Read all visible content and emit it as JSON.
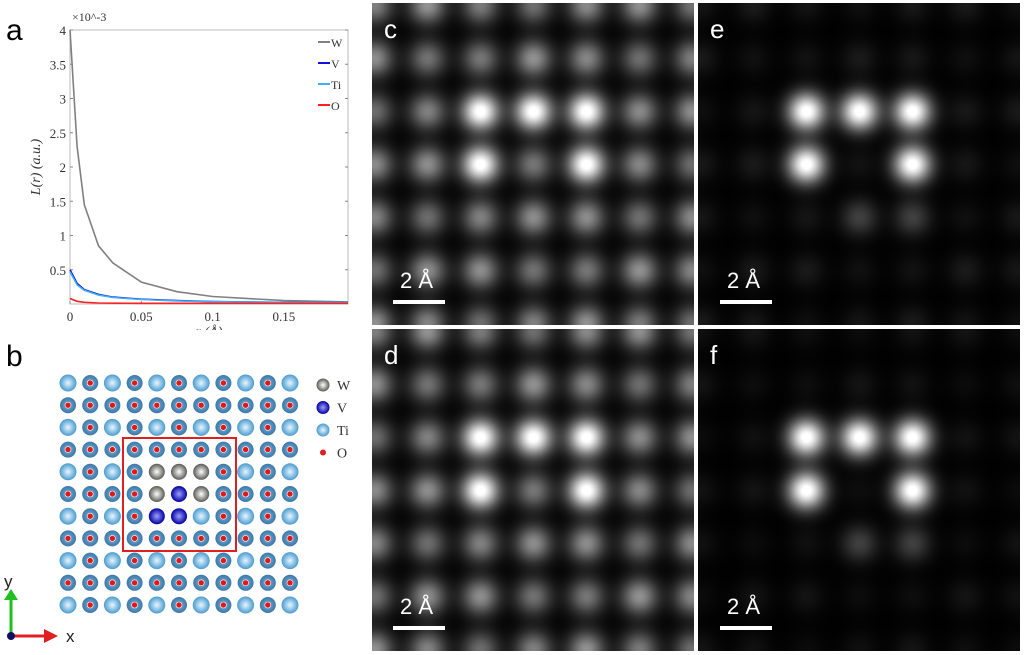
{
  "panels": {
    "a": "a",
    "b": "b",
    "c": "c",
    "d": "d",
    "e": "e",
    "f": "f"
  },
  "scale_bar": "2 Å",
  "chart_data": {
    "type": "line",
    "xlabel": "r (Å)",
    "ylabel": "L(r) (a.u.)",
    "y_multiplier": "×10^-3",
    "xlim": [
      0,
      0.195
    ],
    "ylim": [
      0,
      4
    ],
    "xticks": [
      "0",
      "0.05",
      "0.1",
      "0.15"
    ],
    "yticks": [
      "0.5",
      "1",
      "1.5",
      "2",
      "2.5",
      "3",
      "3.5",
      "4"
    ],
    "legend_position": "top-right",
    "grid": false,
    "x": [
      0,
      0.005,
      0.01,
      0.02,
      0.03,
      0.05,
      0.075,
      0.1,
      0.15,
      0.195
    ],
    "series": [
      {
        "name": "W",
        "color": "#808080",
        "values": [
          4.0,
          2.3,
          1.45,
          0.85,
          0.6,
          0.32,
          0.18,
          0.11,
          0.05,
          0.03
        ]
      },
      {
        "name": "V",
        "color": "#1010e0",
        "values": [
          0.5,
          0.3,
          0.21,
          0.14,
          0.1,
          0.07,
          0.05,
          0.035,
          0.025,
          0.02
        ]
      },
      {
        "name": "Ti",
        "color": "#40b0f0",
        "values": [
          0.47,
          0.28,
          0.2,
          0.13,
          0.095,
          0.065,
          0.045,
          0.033,
          0.023,
          0.02
        ]
      },
      {
        "name": "O",
        "color": "#ff2020",
        "values": [
          0.08,
          0.04,
          0.025,
          0.015,
          0.012,
          0.01,
          0.01,
          0.01,
          0.01,
          0.01
        ]
      }
    ]
  },
  "structure": {
    "legend": [
      {
        "label": "W",
        "color": "#707070"
      },
      {
        "label": "V",
        "color": "#1010d0"
      },
      {
        "label": "Ti",
        "color": "#70c0e8"
      },
      {
        "label": "O",
        "color": "#e02020"
      }
    ],
    "axes": {
      "x": "x",
      "y": "y"
    }
  }
}
